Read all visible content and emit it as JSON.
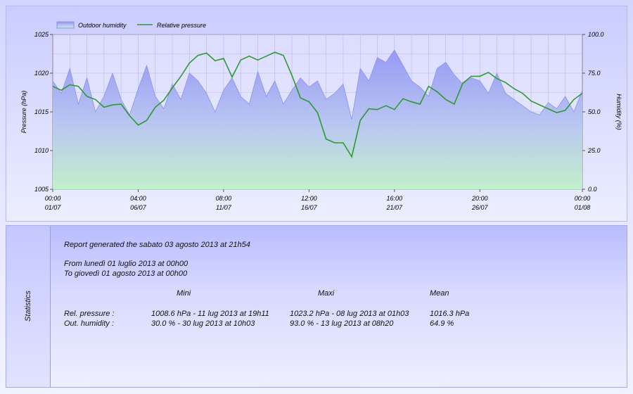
{
  "chart_data": {
    "type": "area+line",
    "legend": {
      "placement": "top-left",
      "items": [
        "Outdoor humidity",
        "Relative pressure"
      ]
    },
    "series": [
      {
        "name": "Relative pressure",
        "axis": "left",
        "render": "line",
        "color": "#2e9a2e",
        "x": [
          0,
          0.5,
          1,
          1.5,
          2,
          2.5,
          3,
          3.5,
          4,
          4.5,
          5,
          5.5,
          6,
          6.5,
          7,
          7.5,
          8,
          8.5,
          9,
          9.5,
          10,
          10.5,
          11,
          11.5,
          12,
          12.5,
          13,
          13.5,
          14,
          14.5,
          15,
          15.5,
          16,
          16.5,
          17,
          17.5,
          18,
          18.5,
          19,
          19.5,
          20,
          20.5,
          21,
          21.5,
          22,
          22.5,
          23,
          23.5,
          24,
          24.5,
          25,
          25.5,
          26,
          26.5,
          27,
          27.5,
          28,
          28.5,
          29,
          29.5,
          30,
          30.5,
          31
        ],
        "values": [
          1018.3,
          1017.8,
          1018.5,
          1018.3,
          1017.0,
          1016.6,
          1015.6,
          1015.9,
          1016.0,
          1014.5,
          1013.3,
          1013.9,
          1015.6,
          1016.5,
          1018.1,
          1019.6,
          1021.3,
          1022.3,
          1022.6,
          1021.6,
          1021.9,
          1019.5,
          1021.7,
          1022.2,
          1021.7,
          1022.2,
          1022.7,
          1022.3,
          1019.7,
          1016.8,
          1016.3,
          1014.9,
          1011.5,
          1011.0,
          1011.0,
          1009.2,
          1013.9,
          1015.4,
          1015.3,
          1015.8,
          1015.3,
          1016.7,
          1016.3,
          1016.0,
          1018.3,
          1017.6,
          1016.6,
          1016.0,
          1018.7,
          1019.6,
          1019.6,
          1020.1,
          1019.3,
          1018.8,
          1018.0,
          1017.4,
          1016.4,
          1015.9,
          1015.4,
          1014.9,
          1015.2,
          1016.6,
          1017.4
        ]
      },
      {
        "name": "Outdoor humidity",
        "axis": "right",
        "render": "area",
        "color": "#8c90f0",
        "x": [
          0,
          0.5,
          1,
          1.5,
          2,
          2.5,
          3,
          3.5,
          4,
          4.5,
          5,
          5.5,
          6,
          6.5,
          7,
          7.5,
          8,
          8.5,
          9,
          9.5,
          10,
          10.5,
          11,
          11.5,
          12,
          12.5,
          13,
          13.5,
          14,
          14.5,
          15,
          15.5,
          16,
          16.5,
          17,
          17.5,
          18,
          18.5,
          19,
          19.5,
          20,
          20.5,
          21,
          21.5,
          22,
          22.5,
          23,
          23.5,
          24,
          24.5,
          25,
          25.5,
          26,
          26.5,
          27,
          27.5,
          28,
          28.5,
          29,
          29.5,
          30,
          30.5,
          31
        ],
        "values": [
          70,
          62,
          78,
          55,
          72,
          50,
          60,
          75,
          58,
          48,
          65,
          80,
          60,
          52,
          68,
          58,
          75,
          70,
          62,
          50,
          64,
          72,
          60,
          55,
          76,
          60,
          70,
          55,
          64,
          72,
          66,
          70,
          58,
          62,
          68,
          45,
          78,
          70,
          85,
          82,
          90,
          80,
          70,
          66,
          60,
          78,
          82,
          74,
          68,
          72,
          70,
          62,
          75,
          62,
          58,
          54,
          50,
          48,
          56,
          52,
          60,
          50,
          64
        ]
      }
    ],
    "x_tick_labels": [
      [
        "00:00",
        "01/07"
      ],
      [
        "04:00",
        "06/07"
      ],
      [
        "08:00",
        "11/07"
      ],
      [
        "12:00",
        "16/07"
      ],
      [
        "16:00",
        "21/07"
      ],
      [
        "20:00",
        "26/07"
      ],
      [
        "00:00",
        "01/08"
      ]
    ],
    "x_tick_days": [
      0,
      5,
      10,
      15,
      20,
      25,
      31
    ],
    "y_left": {
      "label": "Pressure (hPa)",
      "ticks": [
        "1005",
        "1010",
        "1015",
        "1020",
        "1025"
      ],
      "range": [
        1005,
        1025
      ]
    },
    "y_right": {
      "label": "Humidity (%)",
      "ticks": [
        "0.0",
        "25.0",
        "50.0",
        "75.0",
        "100.0"
      ],
      "range": [
        0,
        100
      ]
    },
    "grid": true
  },
  "stats": {
    "side_label": "Statistics",
    "report_line": "Report generated the sabato 03 agosto 2013 at 21h54",
    "from_line": "From lunedì 01 luglio 2013 at 00h00",
    "to_line": "To giovedì 01 agosto 2013 at 00h00",
    "headers": {
      "min": "Mini",
      "max": "Maxi",
      "mean": "Mean"
    },
    "rows": [
      {
        "label": "Rel. pressure :",
        "min": "1008.6 hPa - 11 lug 2013 at 19h11",
        "max": "1023.2 hPa - 08 lug 2013 at 01h03",
        "mean": "1016.3 hPa"
      },
      {
        "label": "Out. humidity :",
        "min": "30.0 % - 30 lug 2013 at 10h03",
        "max": "93.0 % - 13 lug 2013 at 08h20",
        "mean": "64.9 %"
      }
    ]
  }
}
